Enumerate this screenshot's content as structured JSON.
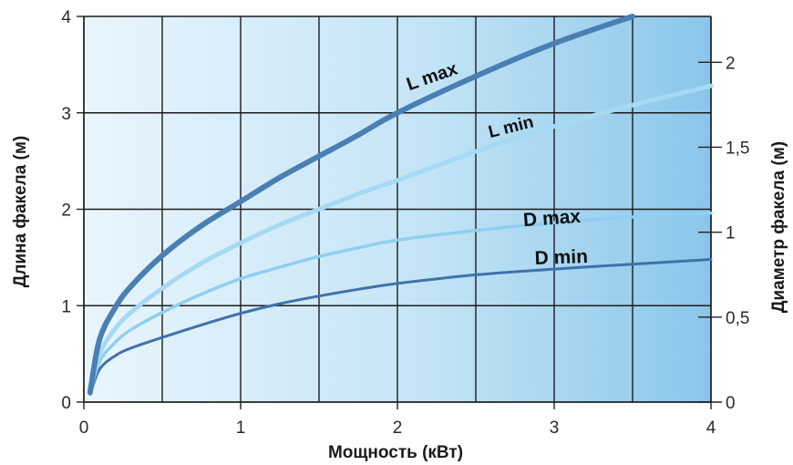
{
  "chart_data": {
    "type": "line",
    "title": "",
    "xlabel": "Мощность (кВт)",
    "ylabel": "Длина факела (м)",
    "y2label": "Диаметр факела (м)",
    "xlim": [
      0,
      4
    ],
    "ylim": [
      0,
      4
    ],
    "y2lim": [
      0,
      2.27
    ],
    "x_ticks": [
      "0",
      "1",
      "2",
      "3",
      "4"
    ],
    "y_ticks": [
      "0",
      "1",
      "2",
      "3",
      "4"
    ],
    "y2_ticks": [
      "0",
      "0,5",
      "1",
      "1,5",
      "2"
    ],
    "grid": true,
    "legend": "inline labels on curves",
    "series": [
      {
        "name": "L max",
        "axis": "left",
        "color": "#4a7fb3",
        "x": [
          0.04,
          0.1,
          0.2,
          0.3,
          0.5,
          0.75,
          1.0,
          1.25,
          1.5,
          1.75,
          2.0,
          2.5,
          3.0,
          3.5
        ],
        "y": [
          0.1,
          0.65,
          0.98,
          1.2,
          1.52,
          1.83,
          2.08,
          2.33,
          2.55,
          2.77,
          3.0,
          3.38,
          3.72,
          4.0
        ]
      },
      {
        "name": "L min",
        "axis": "left",
        "color": "#a6d9f3",
        "x": [
          0.04,
          0.1,
          0.2,
          0.3,
          0.5,
          0.75,
          1.0,
          1.25,
          1.5,
          1.75,
          2.0,
          2.5,
          3.0,
          3.5,
          4.0
        ],
        "y": [
          0.1,
          0.5,
          0.76,
          0.93,
          1.18,
          1.44,
          1.65,
          1.84,
          2.0,
          2.16,
          2.3,
          2.6,
          2.86,
          3.08,
          3.28
        ]
      },
      {
        "name": "D max",
        "axis": "left",
        "color": "#8fcff0",
        "x": [
          0.04,
          0.1,
          0.2,
          0.3,
          0.5,
          0.75,
          1.0,
          1.25,
          1.5,
          1.75,
          2.0,
          2.5,
          3.0,
          3.5,
          4.0
        ],
        "y": [
          0.1,
          0.42,
          0.62,
          0.75,
          0.93,
          1.12,
          1.28,
          1.4,
          1.51,
          1.6,
          1.68,
          1.78,
          1.86,
          1.92,
          1.96
        ]
      },
      {
        "name": "D min",
        "axis": "left",
        "color": "#3f72aa",
        "x": [
          0.04,
          0.1,
          0.2,
          0.3,
          0.5,
          0.75,
          1.0,
          1.25,
          1.5,
          1.75,
          2.0,
          2.5,
          3.0,
          3.5,
          4.0
        ],
        "y": [
          0.08,
          0.34,
          0.48,
          0.56,
          0.67,
          0.8,
          0.92,
          1.02,
          1.1,
          1.17,
          1.23,
          1.32,
          1.38,
          1.43,
          1.48
        ]
      }
    ]
  }
}
